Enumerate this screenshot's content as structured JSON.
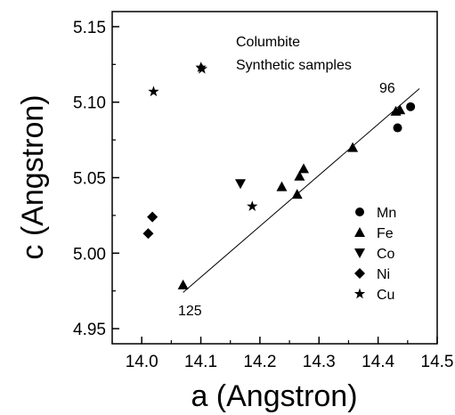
{
  "chart_data": {
    "type": "scatter",
    "title": "",
    "xlabel": "a (Angstron)",
    "ylabel": "c (Angstron)",
    "xlim": [
      13.95,
      14.5
    ],
    "ylim": [
      4.94,
      5.16
    ],
    "x_ticks": [
      "14.0",
      "14.1",
      "14.2",
      "14.3",
      "14.4",
      "14.5"
    ],
    "y_ticks": [
      "4.95",
      "5.00",
      "5.05",
      "5.10",
      "5.15"
    ],
    "annotations": [
      {
        "text": "Columbite"
      },
      {
        "text": "Synthetic samples"
      },
      {
        "text": "96"
      },
      {
        "text": "125"
      }
    ],
    "legend": {
      "placement": "bottom-right"
    },
    "fit_line": {
      "x": [
        14.07,
        14.47
      ],
      "y": [
        4.974,
        5.109
      ]
    },
    "series": [
      {
        "name": "Mn",
        "marker": "circle",
        "points": [
          [
            14.433,
            5.083
          ],
          [
            14.455,
            5.097
          ]
        ]
      },
      {
        "name": "Fe",
        "marker": "triangle-up",
        "points": [
          [
            14.07,
            4.979
          ],
          [
            14.237,
            5.044
          ],
          [
            14.263,
            5.039
          ],
          [
            14.267,
            5.051
          ],
          [
            14.274,
            5.056
          ],
          [
            14.357,
            5.07
          ],
          [
            14.43,
            5.094
          ],
          [
            14.437,
            5.095
          ]
        ]
      },
      {
        "name": "Co",
        "marker": "triangle-down",
        "points": [
          [
            14.167,
            5.046
          ]
        ]
      },
      {
        "name": "Ni",
        "marker": "diamond",
        "points": [
          [
            14.011,
            5.013
          ],
          [
            14.018,
            5.024
          ]
        ]
      },
      {
        "name": "Cu",
        "marker": "star",
        "points": [
          [
            14.02,
            5.107
          ],
          [
            14.1,
            5.123
          ],
          [
            14.102,
            5.122
          ],
          [
            14.187,
            5.031
          ]
        ]
      }
    ]
  }
}
